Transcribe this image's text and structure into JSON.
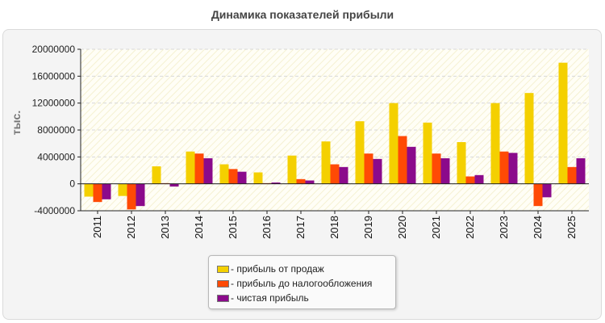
{
  "chart_data": {
    "type": "bar",
    "title": "Динамика показателей прибыли",
    "ylabel": "тыс.",
    "xlabel": "",
    "ylim": [
      -4000000,
      20000000
    ],
    "yticks": [
      -4000000,
      0,
      4000000,
      8000000,
      12000000,
      16000000,
      20000000
    ],
    "grid": true,
    "legend_position": "bottom",
    "categories": [
      "2011",
      "2012",
      "2013",
      "2014",
      "2015",
      "2016",
      "2017",
      "2018",
      "2019",
      "2020",
      "2021",
      "2022",
      "2023",
      "2024",
      "2025"
    ],
    "series": [
      {
        "name": "- прибыль от продаж",
        "color": "#f4d000",
        "values": [
          -1900000,
          -1800000,
          2600000,
          4800000,
          2900000,
          1700000,
          4200000,
          6300000,
          9300000,
          12000000,
          9100000,
          6200000,
          12000000,
          13500000,
          18000000
        ]
      },
      {
        "name": "- прибыль до налогообложения",
        "color": "#ff4a05",
        "values": [
          -2700000,
          -3800000,
          100000,
          4500000,
          2200000,
          100000,
          700000,
          2900000,
          4500000,
          7100000,
          4500000,
          1100000,
          4800000,
          -3300000,
          2500000
        ]
      },
      {
        "name": "- чистая прибыль",
        "color": "#8b0a8b",
        "values": [
          -2300000,
          -3300000,
          -400000,
          3800000,
          1800000,
          200000,
          500000,
          2500000,
          3700000,
          5500000,
          3800000,
          1300000,
          4600000,
          -2000000,
          3800000
        ]
      }
    ]
  }
}
